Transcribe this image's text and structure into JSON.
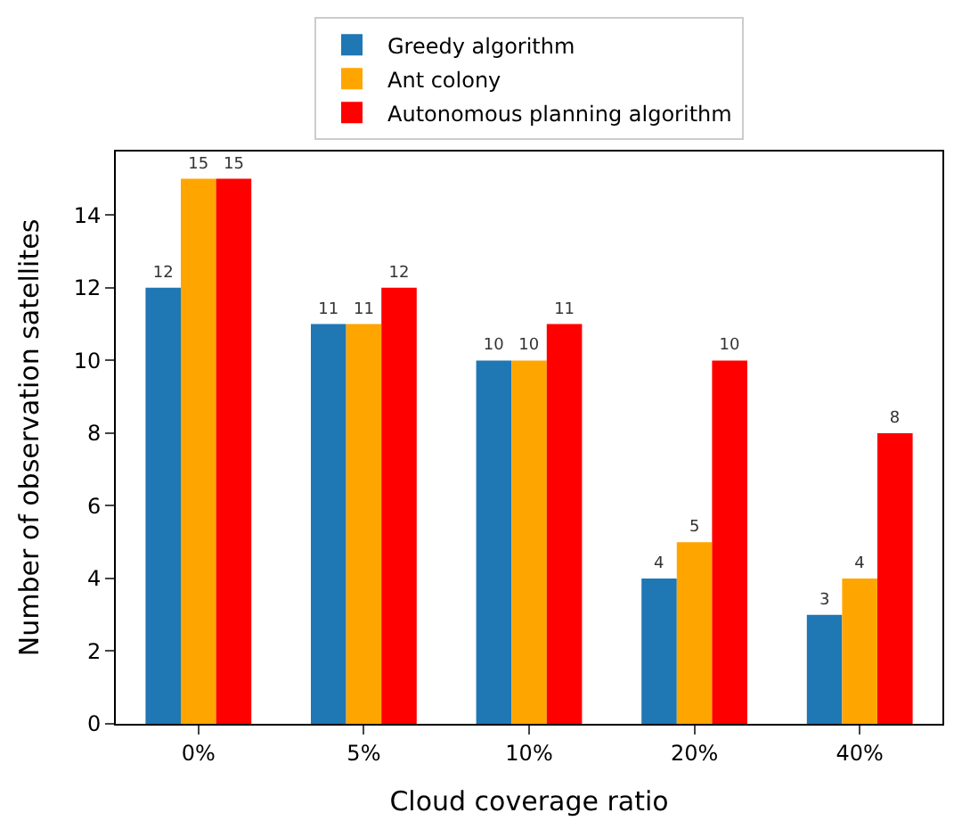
{
  "chart_data": {
    "type": "bar",
    "xlabel": "Cloud coverage ratio",
    "ylabel": "Number of observation satellites",
    "categories": [
      "0%",
      "5%",
      "10%",
      "20%",
      "40%"
    ],
    "series": [
      {
        "name": "Greedy algorithm",
        "color": "#1f77b4",
        "values": [
          12,
          11,
          10,
          4,
          3
        ]
      },
      {
        "name": "Ant colony",
        "color": "#ffa500",
        "values": [
          15,
          11,
          10,
          5,
          4
        ]
      },
      {
        "name": "Autonomous planning algorithm",
        "color": "#ff0000",
        "values": [
          15,
          12,
          11,
          10,
          8
        ]
      }
    ],
    "ylim": [
      0,
      15.75
    ],
    "yticks": [
      0,
      2,
      4,
      6,
      8,
      10,
      12,
      14
    ],
    "legend": "top",
    "data_labels": true
  }
}
